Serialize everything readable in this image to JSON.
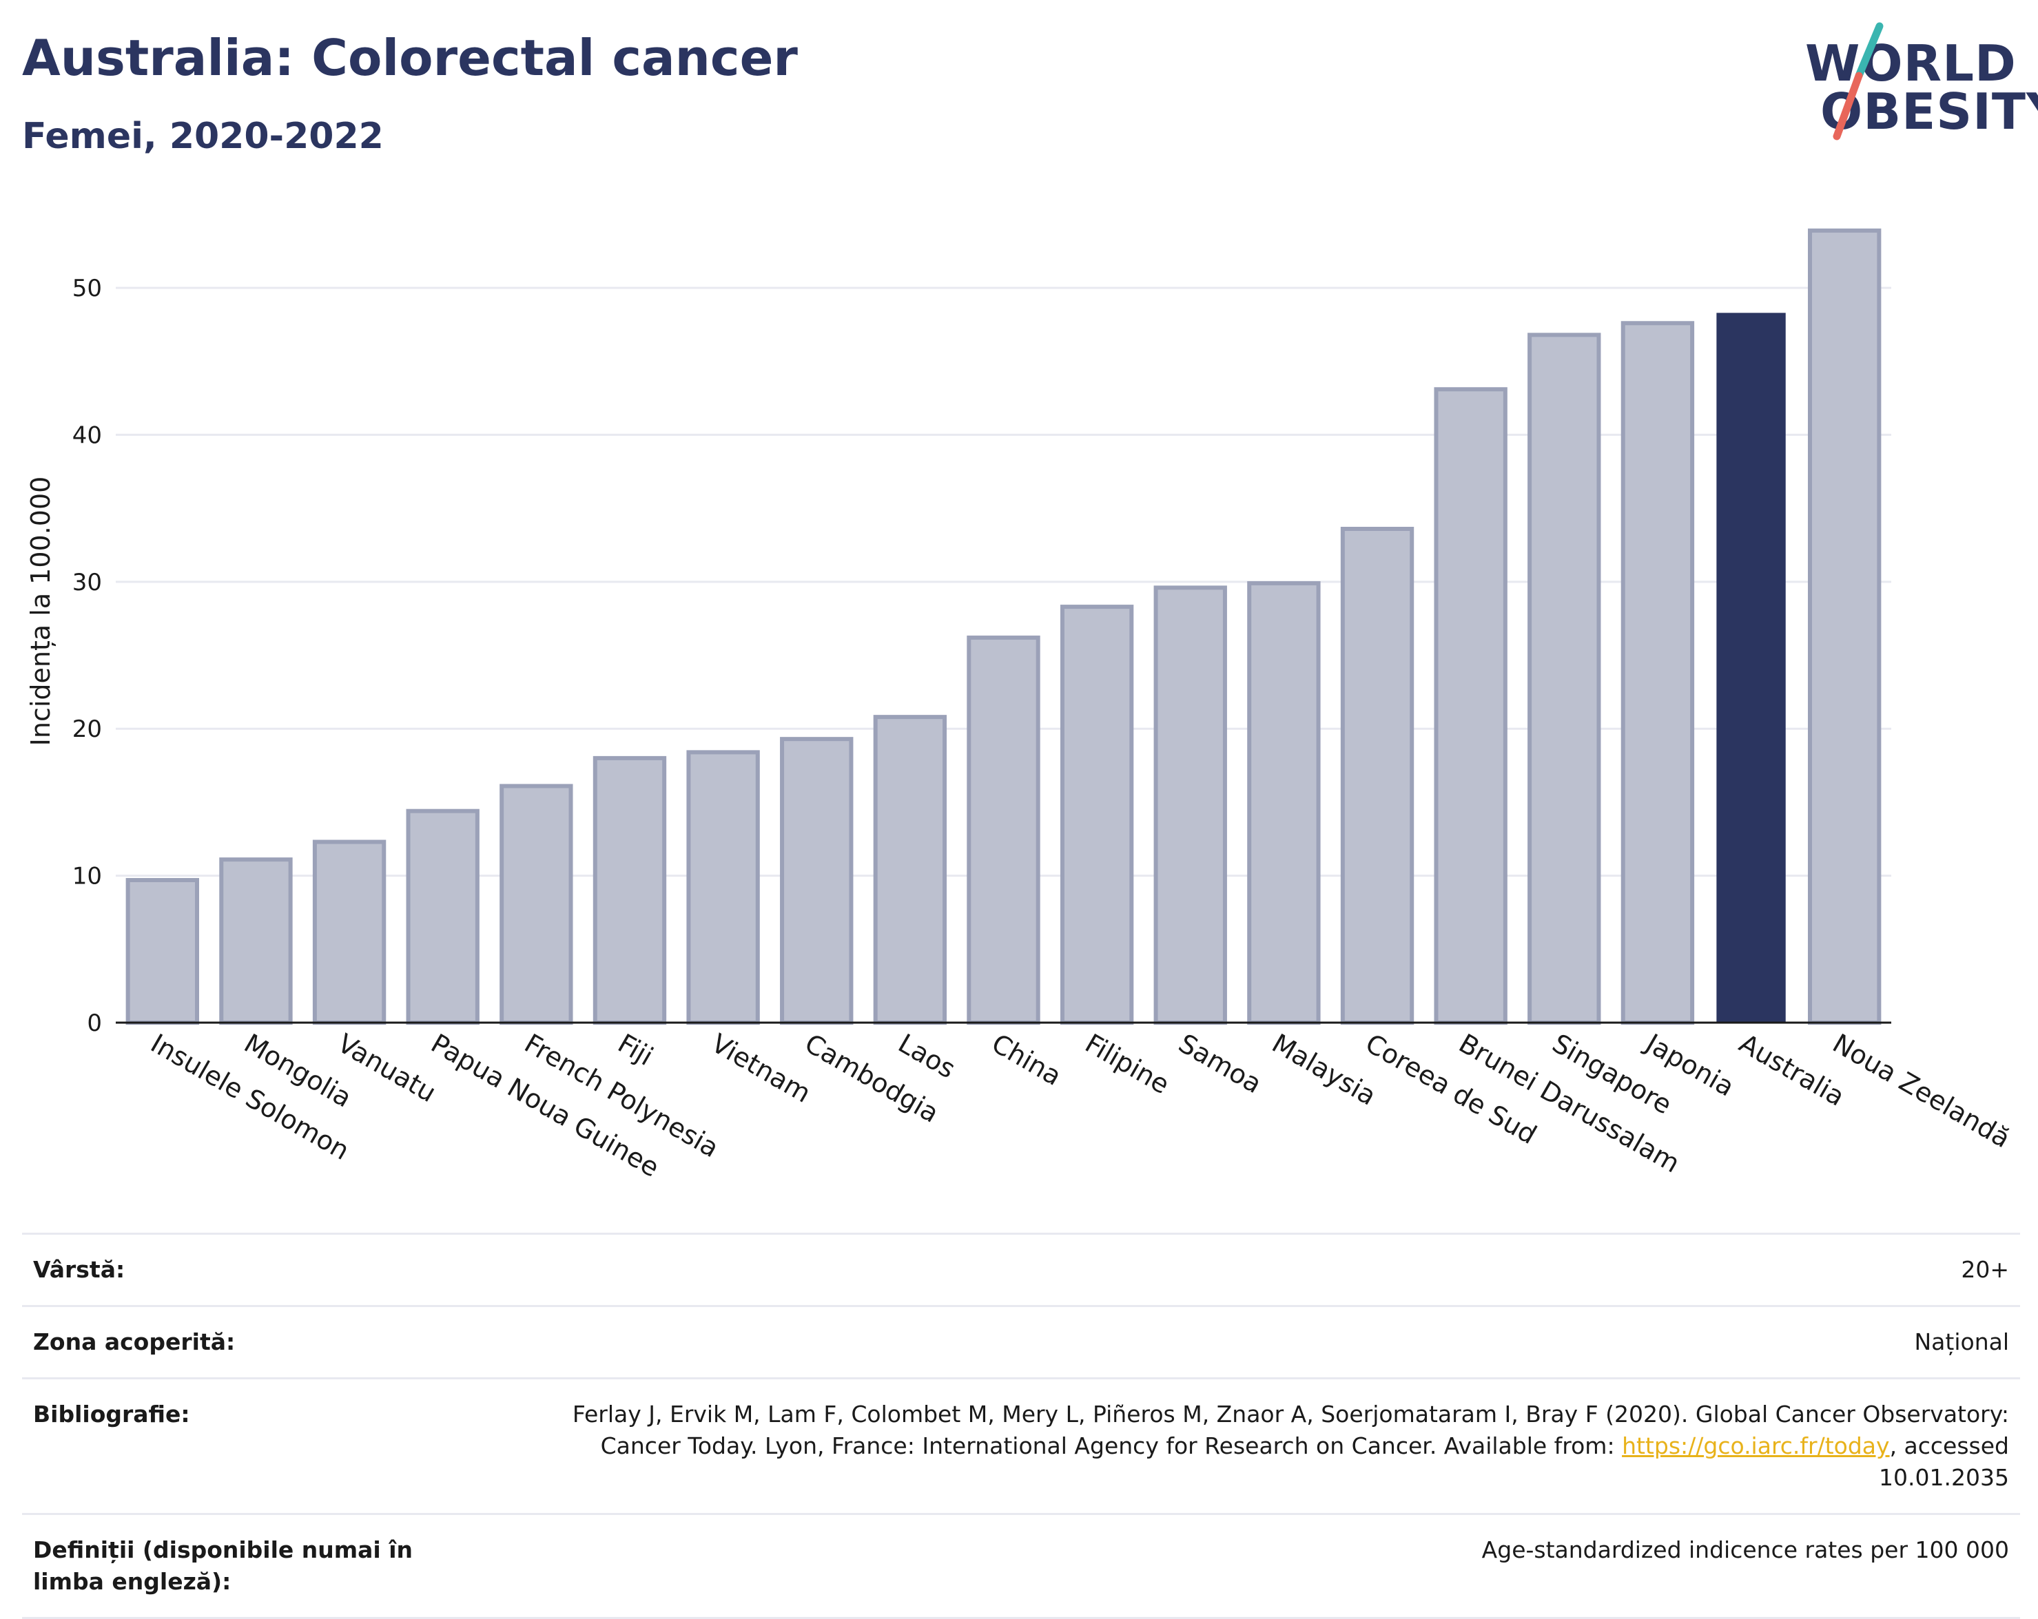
{
  "header": {
    "title": "Australia: Colorectal cancer",
    "subtitle": "Femei, 2020-2022"
  },
  "logo": {
    "line1": "WORLD",
    "line2": "OBESITY",
    "colors": {
      "text": "#2b3560",
      "slash_top": "#3ab5b0",
      "slash_bottom": "#e8665a"
    }
  },
  "chart_data": {
    "type": "bar",
    "ylabel": "Incidența la 100.000",
    "xlabel": "",
    "ylim": [
      0,
      56
    ],
    "yticks": [
      0,
      10,
      20,
      30,
      40,
      50
    ],
    "grid": true,
    "categories": [
      "Insulele Solomon",
      "Mongolia",
      "Vanuatu",
      "Papua Noua Guinee",
      "French Polynesia",
      "Fiji",
      "Vietnam",
      "Cambodgia",
      "Laos",
      "China",
      "Filipine",
      "Samoa",
      "Malaysia",
      "Coreea de Sud",
      "Brunei Darussalam",
      "Singapore",
      "Japonia",
      "Australia",
      "Noua Zeelandă"
    ],
    "values": [
      9.7,
      11.1,
      12.3,
      14.4,
      16.1,
      18.0,
      18.4,
      19.3,
      20.8,
      26.2,
      28.3,
      29.6,
      29.9,
      33.6,
      43.1,
      46.8,
      47.6,
      48.3,
      53.9
    ],
    "highlight": "Australia",
    "colors": {
      "bar": "#bcc0cf",
      "bar_border": "#9ba1b8",
      "highlight": "#2b3560",
      "grid": "#e8e9f0"
    }
  },
  "meta": {
    "age_label": "Vârstă:",
    "age_value": "20+",
    "area_label": "Zona acoperită:",
    "area_value": "Național",
    "bib_label": "Bibliografie:",
    "bib_text1": "Ferlay J, Ervik M, Lam F, Colombet M, Mery L, Piñeros M, Znaor A, Soerjomataram I, Bray F (2020). Global Cancer Observatory: Cancer Today. Lyon, France: International Agency for Research on Cancer. Available from: ",
    "bib_link": "https://gco.iarc.fr/today",
    "bib_text2": ", accessed 10.01.2035",
    "def_label": "Definiții (disponibile numai în limba engleză):",
    "def_value": "Age-standardized indicence rates per 100 000"
  }
}
